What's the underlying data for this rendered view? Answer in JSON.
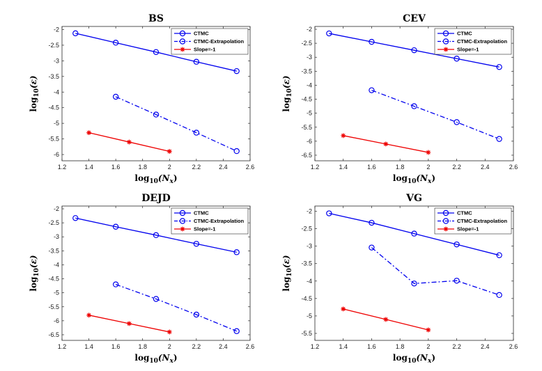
{
  "colors": {
    "ctmc": "#0000ee",
    "extrap": "#0000ee",
    "slope": "#ee0000",
    "axis": "#262626"
  },
  "chart_data": [
    {
      "type": "line",
      "title": "BS",
      "xlabel_base": "log",
      "xlabel_sub": "10",
      "xlabel_arg": "(N",
      "xlabel_argsub": "x",
      "xlabel_close": ")",
      "ylabel_base": "log",
      "ylabel_sub": "10",
      "ylabel_arg": "(ε)",
      "xlim": [
        1.2,
        2.6
      ],
      "ylim": [
        -6.2,
        -1.9
      ],
      "xticks": [
        1.2,
        1.4,
        1.6,
        1.8,
        2,
        2.2,
        2.4,
        2.6
      ],
      "xtick_labels": [
        "1.2",
        "1.4",
        "1.6",
        "1.8",
        "2",
        "2.2",
        "2.4",
        "2.6"
      ],
      "yticks": [
        -2,
        -2.5,
        -3,
        -3.5,
        -4,
        -4.5,
        -5,
        -5.5,
        -6
      ],
      "ytick_labels": [
        "-2",
        "-2.5",
        "-3",
        "-3.5",
        "-4",
        "-4.5",
        "-5",
        "-5.5",
        "-6"
      ],
      "legend": "top-right",
      "series": [
        {
          "name": "CTMC",
          "style": "solid",
          "marker": "circle",
          "x": [
            1.3,
            1.6,
            1.9,
            2.2,
            2.5
          ],
          "y": [
            -2.12,
            -2.42,
            -2.72,
            -3.03,
            -3.33
          ]
        },
        {
          "name": "CTMC-Extrapolation",
          "style": "dashdot",
          "marker": "circle",
          "x": [
            1.6,
            1.9,
            2.2,
            2.5
          ],
          "y": [
            -4.15,
            -4.72,
            -5.3,
            -5.89
          ]
        },
        {
          "name": "Slope=-1",
          "style": "solid",
          "marker": "star",
          "x": [
            1.4,
            1.7,
            2.0
          ],
          "y": [
            -5.3,
            -5.6,
            -5.9
          ]
        }
      ]
    },
    {
      "type": "line",
      "title": "CEV",
      "xlabel_base": "log",
      "xlabel_sub": "10",
      "xlabel_arg": "(N",
      "xlabel_argsub": "x",
      "xlabel_close": ")",
      "ylabel_base": "log",
      "ylabel_sub": "10",
      "ylabel_arg": "(ε)",
      "xlim": [
        1.2,
        2.6
      ],
      "ylim": [
        -6.7,
        -1.9
      ],
      "xticks": [
        1.2,
        1.4,
        1.6,
        1.8,
        2,
        2.2,
        2.4,
        2.6
      ],
      "xtick_labels": [
        "1.2",
        "1.4",
        "1.6",
        "1.8",
        "2",
        "2.2",
        "2.4",
        "2.6"
      ],
      "yticks": [
        -2,
        -2.5,
        -3,
        -3.5,
        -4,
        -4.5,
        -5,
        -5.5,
        -6,
        -6.5
      ],
      "ytick_labels": [
        "-2",
        "-2.5",
        "-3",
        "-3.5",
        "-4",
        "-4.5",
        "-5",
        "-5.5",
        "-6",
        "-6.5"
      ],
      "legend": "top-right",
      "series": [
        {
          "name": "CTMC",
          "style": "solid",
          "marker": "circle",
          "x": [
            1.3,
            1.6,
            1.9,
            2.2,
            2.5
          ],
          "y": [
            -2.15,
            -2.45,
            -2.75,
            -3.05,
            -3.35
          ]
        },
        {
          "name": "CTMC-Extrapolation",
          "style": "dashdot",
          "marker": "circle",
          "x": [
            1.6,
            1.9,
            2.2,
            2.5
          ],
          "y": [
            -4.18,
            -4.75,
            -5.32,
            -5.92
          ]
        },
        {
          "name": "Slope=-1",
          "style": "solid",
          "marker": "star",
          "x": [
            1.4,
            1.7,
            2.0
          ],
          "y": [
            -5.8,
            -6.1,
            -6.4
          ]
        }
      ]
    },
    {
      "type": "line",
      "title": "DEJD",
      "xlabel_base": "log",
      "xlabel_sub": "10",
      "xlabel_arg": "(N",
      "xlabel_argsub": "x",
      "xlabel_close": ")",
      "ylabel_base": "log",
      "ylabel_sub": "10",
      "ylabel_arg": "(ε)",
      "xlim": [
        1.2,
        2.6
      ],
      "ylim": [
        -6.7,
        -1.9
      ],
      "xticks": [
        1.2,
        1.4,
        1.6,
        1.8,
        2,
        2.2,
        2.4,
        2.6
      ],
      "xtick_labels": [
        "1.2",
        "1.4",
        "1.6",
        "1.8",
        "2",
        "2.2",
        "2.4",
        "2.6"
      ],
      "yticks": [
        -2,
        -2.5,
        -3,
        -3.5,
        -4,
        -4.5,
        -5,
        -5.5,
        -6,
        -6.5
      ],
      "ytick_labels": [
        "-2",
        "-2.5",
        "-3",
        "-3.5",
        "-4",
        "-4.5",
        "-5",
        "-5.5",
        "-6",
        "-6.5"
      ],
      "legend": "top-right",
      "series": [
        {
          "name": "CTMC",
          "style": "solid",
          "marker": "circle",
          "x": [
            1.3,
            1.6,
            1.9,
            2.2,
            2.5
          ],
          "y": [
            -2.33,
            -2.64,
            -2.94,
            -3.25,
            -3.55
          ]
        },
        {
          "name": "CTMC-Extrapolation",
          "style": "dashdot",
          "marker": "circle",
          "x": [
            1.6,
            1.9,
            2.2,
            2.5
          ],
          "y": [
            -4.7,
            -5.22,
            -5.78,
            -6.37
          ]
        },
        {
          "name": "Slope=-1",
          "style": "solid",
          "marker": "star",
          "x": [
            1.4,
            1.7,
            2.0
          ],
          "y": [
            -5.8,
            -6.1,
            -6.4
          ]
        }
      ]
    },
    {
      "type": "line",
      "title": "VG",
      "xlabel_base": "log",
      "xlabel_sub": "10",
      "xlabel_arg": "(N",
      "xlabel_argsub": "x",
      "xlabel_close": ")",
      "ylabel_base": "log",
      "ylabel_sub": "10",
      "ylabel_arg": "(ε)",
      "xlim": [
        1.2,
        2.6
      ],
      "ylim": [
        -5.7,
        -1.85
      ],
      "xticks": [
        1.2,
        1.4,
        1.6,
        1.8,
        2,
        2.2,
        2.4,
        2.6
      ],
      "xtick_labels": [
        "1.2",
        "1.4",
        "1.6",
        "1.8",
        "2",
        "2.2",
        "2.4",
        "2.6"
      ],
      "yticks": [
        -2,
        -2.5,
        -3,
        -3.5,
        -4,
        -4.5,
        -5,
        -5.5
      ],
      "ytick_labels": [
        "-2",
        "-2.5",
        "-3",
        "-3.5",
        "-4",
        "-4.5",
        "-5",
        "-5.5"
      ],
      "legend": "top-right",
      "series": [
        {
          "name": "CTMC",
          "style": "solid",
          "marker": "circle",
          "x": [
            1.3,
            1.6,
            1.9,
            2.2,
            2.5
          ],
          "y": [
            -2.06,
            -2.33,
            -2.64,
            -2.95,
            -3.26
          ]
        },
        {
          "name": "CTMC-Extrapolation",
          "style": "dashdot",
          "marker": "circle",
          "x": [
            1.6,
            1.9,
            2.2,
            2.5
          ],
          "y": [
            -3.04,
            -4.07,
            -3.99,
            -4.4
          ]
        },
        {
          "name": "Slope=-1",
          "style": "solid",
          "marker": "star",
          "x": [
            1.4,
            1.7,
            2.0
          ],
          "y": [
            -4.8,
            -5.1,
            -5.4
          ]
        }
      ]
    }
  ]
}
